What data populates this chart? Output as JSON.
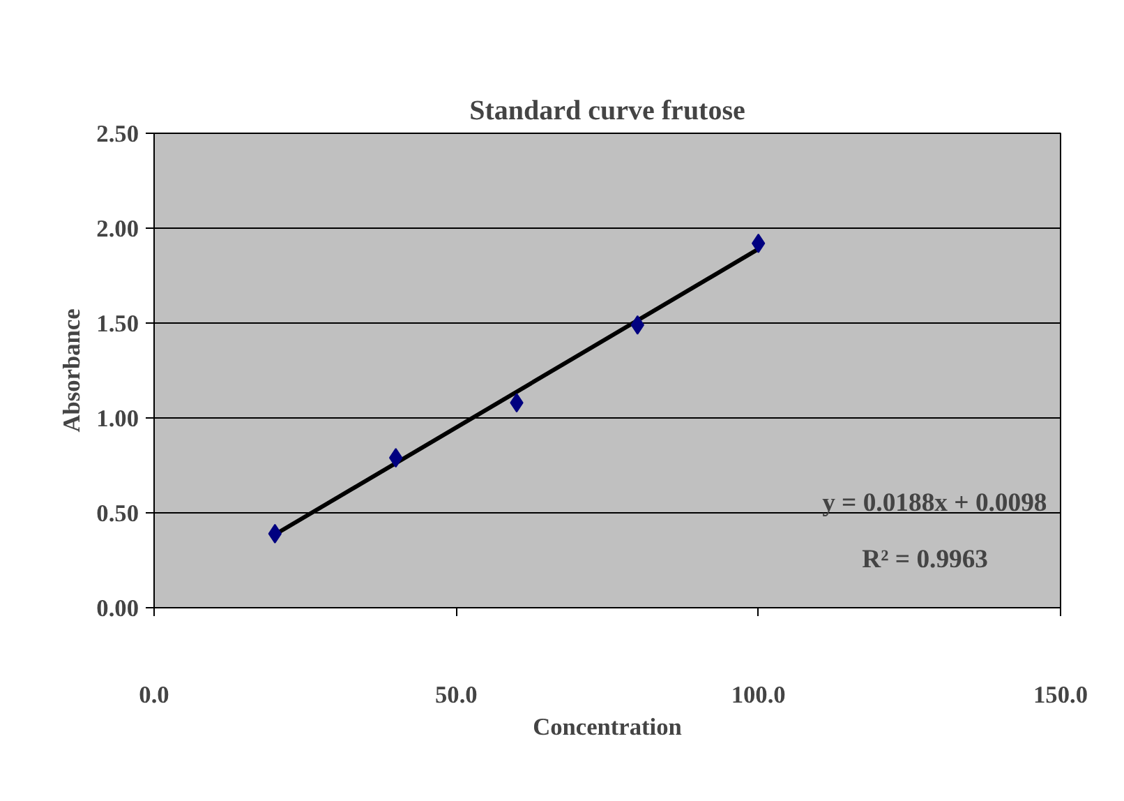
{
  "chart_data": {
    "type": "scatter",
    "title": "Standard curve frutose",
    "xlabel": "Concentration",
    "ylabel": "Absorbance",
    "xlim": [
      0,
      150
    ],
    "xticks": [
      {
        "value": 0,
        "label": "0.0"
      },
      {
        "value": 50,
        "label": "50.0"
      },
      {
        "value": 100,
        "label": "100.0"
      },
      {
        "value": 150,
        "label": "150.0"
      }
    ],
    "ylim": [
      0,
      2.5
    ],
    "yticks": [
      {
        "value": 0,
        "label": "0.00"
      },
      {
        "value": 0.5,
        "label": "0.50"
      },
      {
        "value": 1,
        "label": "1.00"
      },
      {
        "value": 1.5,
        "label": "1.50"
      },
      {
        "value": 2,
        "label": "2.00"
      },
      {
        "value": 2.5,
        "label": "2.50"
      }
    ],
    "grid": "y",
    "marker": "diamond",
    "series": [
      {
        "type": "line",
        "color": "#000000",
        "x": [
          20,
          100
        ],
        "values": [
          0.386,
          1.89
        ],
        "marker": "none"
      },
      {
        "color": "#000080",
        "x": [
          20,
          40,
          60,
          80,
          100
        ],
        "values": [
          0.39,
          0.79,
          1.08,
          1.49,
          1.92
        ]
      }
    ],
    "annotations": [
      "y = 0.0188x + 0.0098",
      "R² = 0.9963"
    ]
  }
}
